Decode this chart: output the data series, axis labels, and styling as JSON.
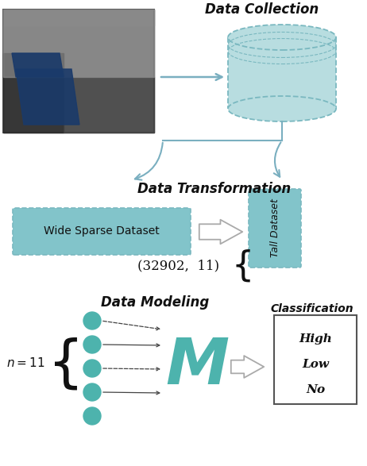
{
  "bg_color": "#ffffff",
  "teal_color": "#4db3ad",
  "teal_light": "#b8dde0",
  "teal_box": "#92cdd1",
  "teal_box2": "#82c4ca",
  "arrow_color": "#6aaab8",
  "text_dark": "#111111",
  "section_labels": [
    "Data Collection",
    "Data Transformation",
    "Data Modeling"
  ],
  "wide_label": "Wide Sparse Dataset",
  "tuple_label": "(32902,  11)",
  "tall_label": "Tall Dataset",
  "n_label": "n = 11",
  "classification_labels": [
    "High",
    "Low",
    "No"
  ],
  "classification_title": "Classification",
  "cyl_color": "#b8dde0",
  "cyl_edge": "#7ab8c0",
  "connector_color": "#7aafc0"
}
